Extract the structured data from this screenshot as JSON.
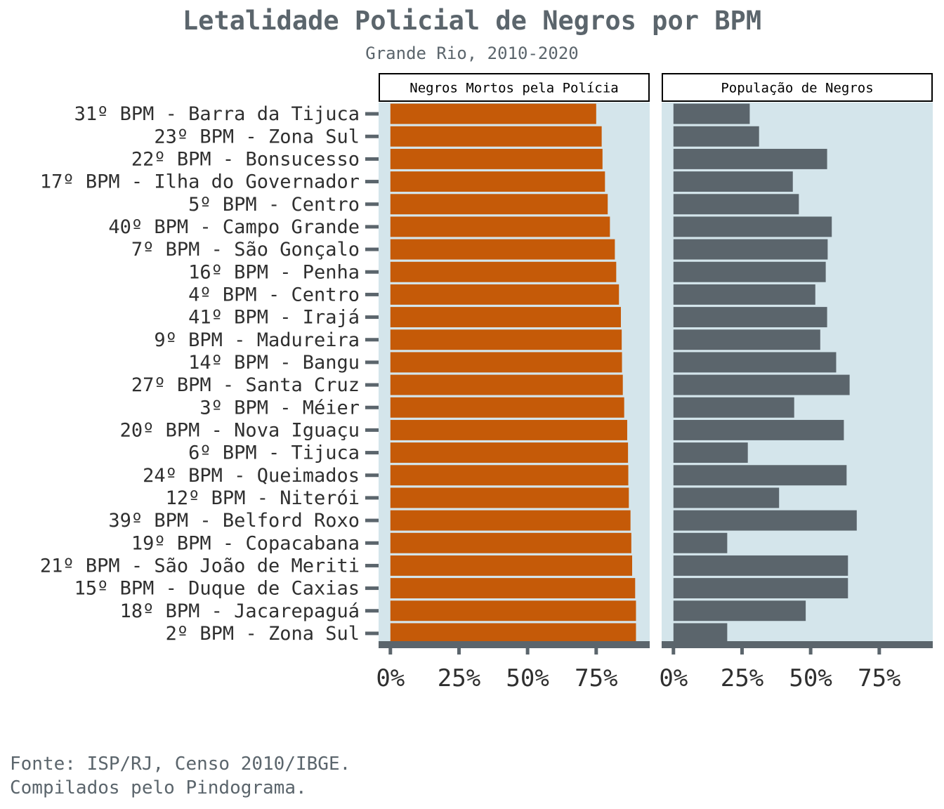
{
  "title": "Letalidade Policial de Negros por BPM",
  "subtitle": "Grande Rio, 2010-2020",
  "caption_lines": [
    "Fonte: ISP/RJ, Censo 2010/IBGE.",
    "Compilados pelo Pindograma."
  ],
  "colors": {
    "text": "#5b656c",
    "panel_bg": "#d4e5eb",
    "bar_left": "#c55a08",
    "bar_right": "#5b656c",
    "axis": "#5b656c",
    "label": "#2f2f2f"
  },
  "chart_data": {
    "type": "bar",
    "orientation": "horizontal",
    "categories": [
      "31º BPM - Barra da Tijuca",
      "23º BPM - Zona Sul",
      "22º BPM - Bonsucesso",
      "17º BPM - Ilha do Governador",
      "5º BPM - Centro",
      "40º BPM - Campo Grande",
      "7º BPM - São Gonçalo",
      "16º BPM - Penha",
      "4º BPM - Centro",
      "41º BPM - Irajá",
      "9º BPM - Madureira",
      "14º BPM - Bangu",
      "27º BPM - Santa Cruz",
      "3º BPM - Méier",
      "20º BPM - Nova Iguaçu",
      "6º BPM - Tijuca",
      "24º BPM - Queimados",
      "12º BPM - Niterói",
      "39º BPM - Belford Roxo",
      "19º BPM - Copacabana",
      "21º BPM - São João de Meriti",
      "15º BPM - Duque de Caxias",
      "18º BPM - Jacarepaguá",
      "2º BPM - Zona Sul"
    ],
    "panels": [
      {
        "strip_label": "Negros Mortos pela Polícia",
        "values": [
          75,
          77,
          77.3,
          78.2,
          79.2,
          80,
          81.8,
          82.3,
          83.3,
          84,
          84.3,
          84.4,
          84.7,
          85.2,
          86.3,
          86.6,
          86.7,
          86.9,
          87.5,
          87.8,
          88.1,
          89.2,
          89.5,
          89.5
        ]
      },
      {
        "strip_label": "População de Negros",
        "values": [
          27.8,
          31.2,
          56,
          43.5,
          45.7,
          57.7,
          56.2,
          55.5,
          51.7,
          56,
          53.5,
          59.3,
          64.2,
          44,
          62.1,
          27.1,
          63.1,
          38.5,
          66.8,
          19.6,
          63.6,
          63.6,
          48.2,
          19.6
        ]
      }
    ],
    "xticks": [
      "0%",
      "25%",
      "50%",
      "75%"
    ],
    "xtick_values": [
      0,
      25,
      50,
      75
    ],
    "xlim": [
      -4.3,
      94.5
    ],
    "grid": false,
    "legend": "none"
  }
}
